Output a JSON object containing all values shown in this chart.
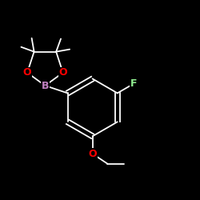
{
  "bg_color": "#000000",
  "bond_color": "#ffffff",
  "atom_colors": {
    "B": "#c080c0",
    "O": "#ff0000",
    "F": "#90ee90"
  },
  "font_size_atoms": 9,
  "figsize": [
    2.5,
    2.5
  ],
  "dpi": 100
}
